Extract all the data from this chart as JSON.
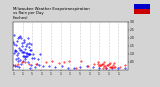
{
  "title": "Milwaukee Weather Evapotranspiration\nvs Rain per Day\n(Inches)",
  "title_fontsize": 2.8,
  "background_color": "#d4d4d4",
  "plot_bg_color": "#ffffff",
  "legend_colors_blue": "#0000cc",
  "legend_colors_red": "#cc0000",
  "xlim": [
    0,
    366
  ],
  "ylim": [
    0,
    0.3
  ],
  "grid_positions": [
    1,
    32,
    60,
    91,
    121,
    152,
    182,
    213,
    244,
    274,
    305,
    335,
    366
  ],
  "ytick_vals": [
    0.05,
    0.1,
    0.15,
    0.2,
    0.25,
    0.3
  ],
  "ytick_labels": [
    ".05",
    ".10",
    ".15",
    ".20",
    ".25",
    ".30"
  ],
  "xtick_positions": [
    1,
    32,
    60,
    91,
    121,
    152,
    182,
    213,
    244,
    274,
    305,
    335
  ],
  "xtick_labels": [
    "1",
    "1",
    "1",
    "1",
    "1",
    "1",
    "1",
    "1",
    "1",
    "1",
    "1",
    "1"
  ]
}
